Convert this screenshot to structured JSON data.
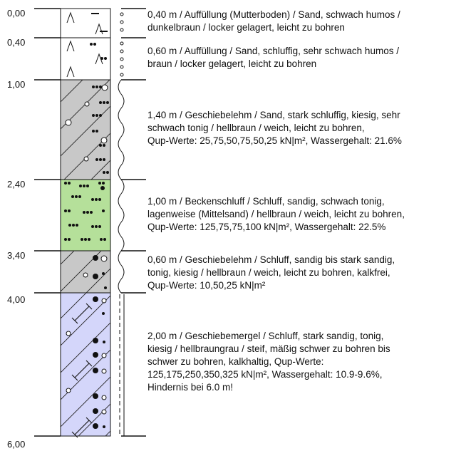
{
  "profile": {
    "depths": [
      "0,00",
      "0,40",
      "1,00",
      "2,40",
      "3,40",
      "4,00",
      "6,00"
    ],
    "layers": [
      {
        "color": "#ffffff",
        "lines": [
          "0,40 m / Auffüllung (Mutterboden) / Sand, schwach humos /",
          "dunkelbraun / locker gelagert, leicht zu bohren"
        ]
      },
      {
        "color": "#ffffff",
        "lines": [
          "0,60 m / Auffüllung / Sand, schluffig, sehr schwach humos /",
          "braun / locker gelagert, leicht zu bohren"
        ]
      },
      {
        "color": "#c8c8c8",
        "lines": [
          "1,40 m / Geschiebelehm / Sand, stark schluffig, kiesig, sehr",
          "schwach tonig / hellbraun / weich, leicht zu bohren,",
          "Qup-Werte: 25,75,50,75,50,25 kN|m², Wassergehalt: 21.6%"
        ]
      },
      {
        "color": "#b5e09a",
        "lines": [
          "1,00 m / Beckenschluff / Schluff, sandig, schwach tonig,",
          "lagenweise (Mittelsand) / hellbraun / weich, leicht zu bohren,",
          "Qup-Werte: 125,75,75,100 kN|m², Wassergehalt: 22.5%"
        ]
      },
      {
        "color": "#c8c8c8",
        "lines": [
          "0,60 m / Geschiebelehm / Schluff, sandig bis stark sandig,",
          "tonig, kiesig / hellbraun / weich, leicht zu bohren, kalkfrei,",
          "Qup-Werte: 10,50,25 kN|m²"
        ]
      },
      {
        "color": "#d4d6fa",
        "lines": [
          "2,00 m / Geschiebemergel / Schluff, stark sandig, tonig,",
          "kiesig / hellbraungrau / steif, mäßig schwer zu bohren bis",
          "schwer zu bohren, kalkhaltig, Qup-Werte:",
          "125,175,250,350,325 kN|m², Wassergehalt: 10.9-9.6%,",
          "Hindernis bei 6.0 m!"
        ]
      }
    ]
  }
}
